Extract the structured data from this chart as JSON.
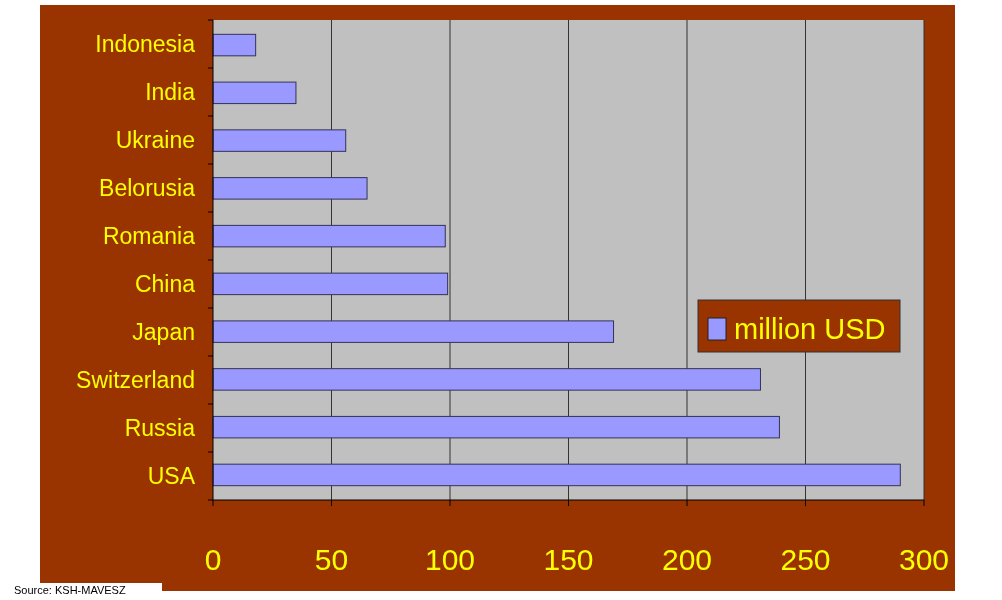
{
  "chart_data": {
    "type": "bar",
    "orientation": "horizontal",
    "categories": [
      "Indonesia",
      "India",
      "Ukraine",
      "Belorusia",
      "Romania",
      "China",
      "Japan",
      "Switzerland",
      "Russia",
      "USA"
    ],
    "series": [
      {
        "name": "million USD",
        "color": "#9999ff",
        "values": [
          18,
          35,
          56,
          65,
          98,
          99,
          169,
          231,
          239,
          290
        ]
      }
    ],
    "xlim": [
      0,
      300
    ],
    "xticks": [
      0,
      50,
      100,
      150,
      200,
      250,
      300
    ],
    "grid": "x",
    "legend": "right",
    "annotations": [
      "Source: KSH-MAVESZ"
    ]
  }
}
